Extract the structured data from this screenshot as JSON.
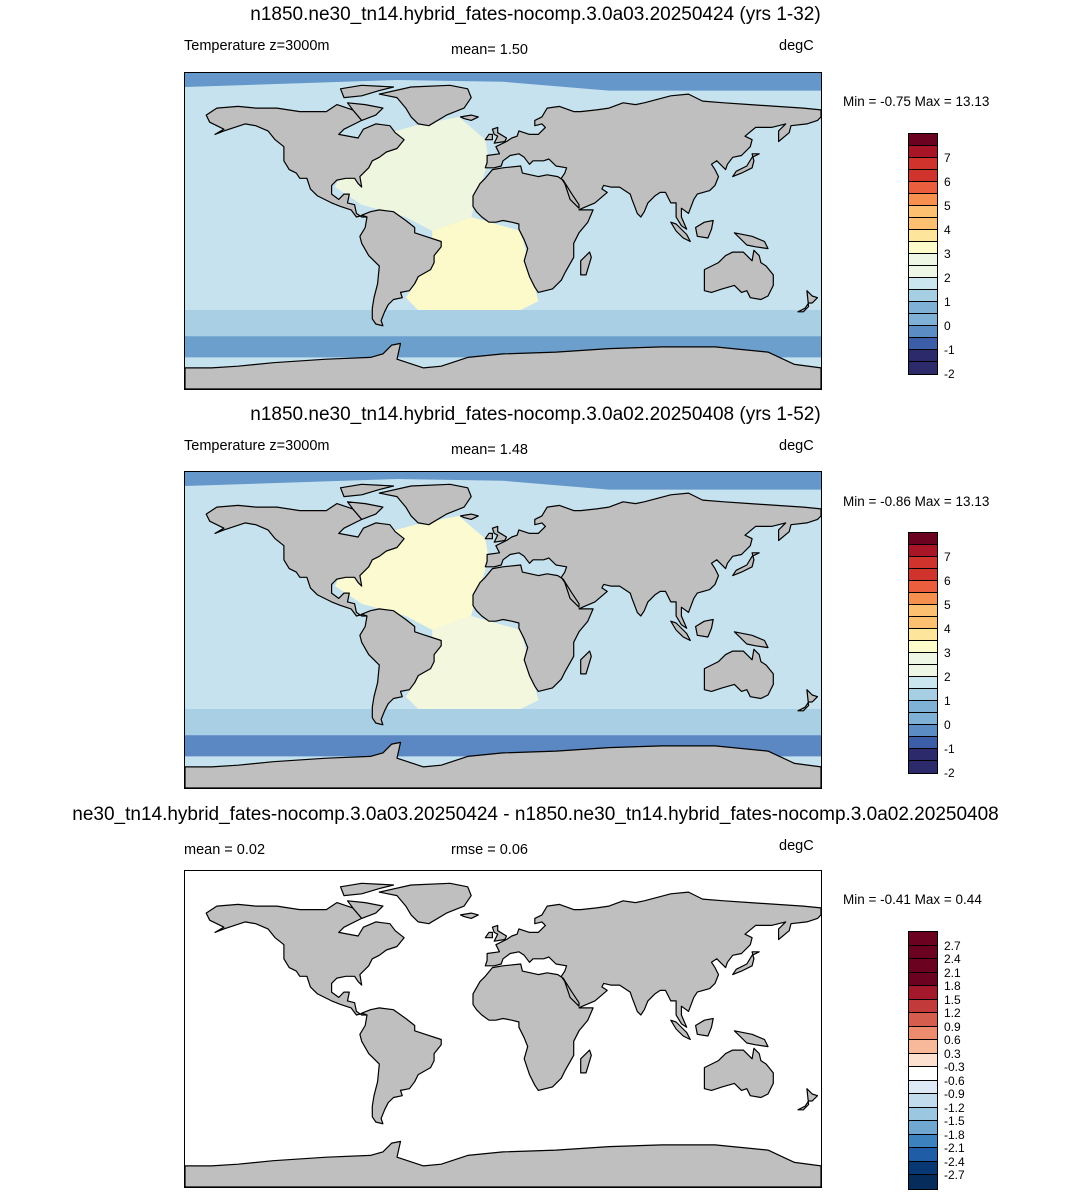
{
  "colors": {
    "land": "#bfbfbf",
    "coast": "#000000",
    "temp_palette": [
      "#2d2a6b",
      "#3c5da8",
      "#5b8cc4",
      "#7fb0d6",
      "#a6cfe4",
      "#cce6f0",
      "#eef6e6",
      "#fcfccb",
      "#fde59c",
      "#fdc070",
      "#f7904f",
      "#ea5e3d",
      "#d0322c",
      "#a81527",
      "#6b0220"
    ],
    "diff_palette": [
      "#083873",
      "#1f5da6",
      "#3b82be",
      "#6fa7d0",
      "#9cc7e1",
      "#c2dced",
      "#dde9f4",
      "#ffffff",
      "#fde1d0",
      "#f8b99a",
      "#ec8b6d",
      "#d55d4e",
      "#c23a3a",
      "#a3182a",
      "#6b0220"
    ]
  },
  "panels": [
    {
      "title": "n1850.ne30_tn14.hybrid_fates-nocomp.3.0a03.20250424 (yrs 1-32)",
      "left_label": "Temperature z=3000m",
      "center_label": "mean=   1.50",
      "units": "degC",
      "minmax": "Min =  -0.75 Max =  13.13",
      "colorbar_ticks": [
        "7",
        "6",
        "5",
        "4",
        "3",
        "2",
        "1",
        "0",
        "-1",
        "-2"
      ],
      "map_fill": {
        "pacific": "#c5e2ee",
        "atlantic_n": "#eef6e0",
        "atlantic_s": "#fcfacb",
        "southern": "#a9cfe4",
        "antarctic": "#6d9fcd",
        "arctic": "#6597cb"
      }
    },
    {
      "title": "n1850.ne30_tn14.hybrid_fates-nocomp.3.0a02.20250408 (yrs 1-52)",
      "left_label": "Temperature z=3000m",
      "center_label": "mean=   1.48",
      "units": "degC",
      "minmax": "Min =  -0.86 Max =  13.13",
      "colorbar_ticks": [
        "7",
        "6",
        "5",
        "4",
        "3",
        "2",
        "1",
        "0",
        "-1",
        "-2"
      ],
      "map_fill": {
        "pacific": "#c5e2ee",
        "atlantic_n": "#fbfad0",
        "atlantic_s": "#f3f7dd",
        "southern": "#a9cfe4",
        "antarctic": "#5b87c2",
        "arctic": "#6597cb"
      }
    },
    {
      "title": "ne30_tn14.hybrid_fates-nocomp.3.0a03.20250424 - n1850.ne30_tn14.hybrid_fates-nocomp.3.0a02.20250408",
      "left_label": "mean =   0.02",
      "center_label": "rmse =   0.06",
      "units": "degC",
      "minmax": "Min =  -0.41 Max =   0.44",
      "colorbar_ticks": [
        "2.7",
        "2.4",
        "2.1",
        "1.8",
        "1.5",
        "1.2",
        "0.9",
        "0.6",
        "0.3",
        "-0.3",
        "-0.6",
        "-0.9",
        "-1.2",
        "-1.5",
        "-1.8",
        "-2.1",
        "-2.4",
        "-2.7"
      ],
      "map_fill": {
        "pacific": "#ffffff",
        "atlantic_n": "#ffffff",
        "atlantic_s": "#ffffff",
        "southern": "#ffffff",
        "antarctic": "#ffffff",
        "arctic": "#ffffff"
      }
    }
  ]
}
